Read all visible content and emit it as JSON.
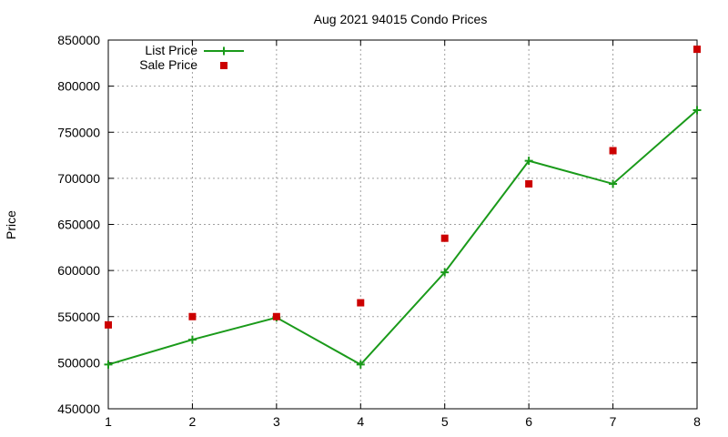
{
  "chart_data": {
    "type": "line",
    "title": "Aug 2021 94015 Condo Prices",
    "xlabel": "",
    "ylabel": "Price",
    "x": [
      1,
      2,
      3,
      4,
      5,
      6,
      7,
      8
    ],
    "xlim": [
      1,
      8
    ],
    "ylim": [
      450000,
      850000
    ],
    "xticks": [
      "1",
      "2",
      "3",
      "4",
      "5",
      "6",
      "7",
      "8"
    ],
    "yticks": [
      "450000",
      "500000",
      "550000",
      "600000",
      "650000",
      "700000",
      "750000",
      "800000",
      "850000"
    ],
    "grid": true,
    "legend_position": "top-left",
    "series": [
      {
        "name": "List Price",
        "style": "line+cross",
        "color": "#1a9a1a",
        "values": [
          498000,
          525000,
          549000,
          498000,
          598000,
          719000,
          694000,
          774000
        ]
      },
      {
        "name": "Sale Price",
        "style": "square",
        "color": "#cc0000",
        "values": [
          541000,
          550000,
          550000,
          565000,
          635000,
          694000,
          730000,
          840000
        ]
      }
    ]
  }
}
